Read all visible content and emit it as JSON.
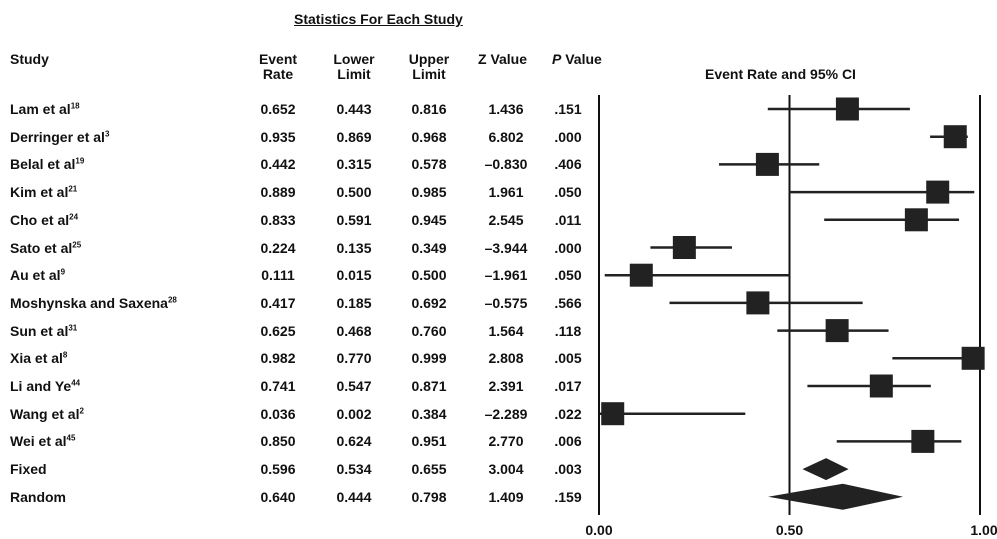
{
  "stats_title": "Statistics For Each Study",
  "headers": {
    "study": "Study",
    "event_rate": "Event\nRate",
    "lower": "Lower\nLimit",
    "upper": "Upper\nLimit",
    "z": "Z Value",
    "p_italic": "P",
    "p_rest": " Value",
    "ci": "Event Rate and 95% CI"
  },
  "chart_data": {
    "type": "forest",
    "xlim": [
      0,
      1
    ],
    "x_ticks": [
      "0.00",
      "0.50",
      "1.00"
    ],
    "reference_line": 0.5,
    "rows": [
      {
        "name": "Lam et al",
        "ref": "18",
        "rate": "0.652",
        "lower": "0.443",
        "upper": "0.816",
        "z": "1.436",
        "p": ".151",
        "kind": "study"
      },
      {
        "name": "Derringer et al",
        "ref": "3",
        "rate": "0.935",
        "lower": "0.869",
        "upper": "0.968",
        "z": "6.802",
        "p": ".000",
        "kind": "study"
      },
      {
        "name": "Belal et al",
        "ref": "19",
        "rate": "0.442",
        "lower": "0.315",
        "upper": "0.578",
        "z": "–0.830",
        "p": ".406",
        "kind": "study"
      },
      {
        "name": "Kim et al",
        "ref": "21",
        "rate": "0.889",
        "lower": "0.500",
        "upper": "0.985",
        "z": "1.961",
        "p": ".050",
        "kind": "study"
      },
      {
        "name": "Cho et al",
        "ref": "24",
        "rate": "0.833",
        "lower": "0.591",
        "upper": "0.945",
        "z": "2.545",
        "p": ".011",
        "kind": "study"
      },
      {
        "name": "Sato et al",
        "ref": "25",
        "rate": "0.224",
        "lower": "0.135",
        "upper": "0.349",
        "z": "–3.944",
        "p": ".000",
        "kind": "study"
      },
      {
        "name": "Au et al",
        "ref": "9",
        "rate": "0.111",
        "lower": "0.015",
        "upper": "0.500",
        "z": "–1.961",
        "p": ".050",
        "kind": "study"
      },
      {
        "name": "Moshynska and Saxena",
        "ref": "28",
        "rate": "0.417",
        "lower": "0.185",
        "upper": "0.692",
        "z": "–0.575",
        "p": ".566",
        "kind": "study"
      },
      {
        "name": "Sun et al",
        "ref": "31",
        "rate": "0.625",
        "lower": "0.468",
        "upper": "0.760",
        "z": "1.564",
        "p": ".118",
        "kind": "study"
      },
      {
        "name": "Xia et al",
        "ref": "8",
        "rate": "0.982",
        "lower": "0.770",
        "upper": "0.999",
        "z": "2.808",
        "p": ".005",
        "kind": "study"
      },
      {
        "name": "Li and Ye",
        "ref": "44",
        "rate": "0.741",
        "lower": "0.547",
        "upper": "0.871",
        "z": "2.391",
        "p": ".017",
        "kind": "study"
      },
      {
        "name": "Wang et al",
        "ref": "2",
        "rate": "0.036",
        "lower": "0.002",
        "upper": "0.384",
        "z": "–2.289",
        "p": ".022",
        "kind": "study"
      },
      {
        "name": "Wei et al",
        "ref": "45",
        "rate": "0.850",
        "lower": "0.624",
        "upper": "0.951",
        "z": "2.770",
        "p": ".006",
        "kind": "study"
      },
      {
        "name": "Fixed",
        "ref": "",
        "rate": "0.596",
        "lower": "0.534",
        "upper": "0.655",
        "z": "3.004",
        "p": ".003",
        "kind": "summary"
      },
      {
        "name": "Random",
        "ref": "",
        "rate": "0.640",
        "lower": "0.444",
        "upper": "0.798",
        "z": "1.409",
        "p": ".159",
        "kind": "summary"
      }
    ],
    "mark_color": "#222222"
  }
}
